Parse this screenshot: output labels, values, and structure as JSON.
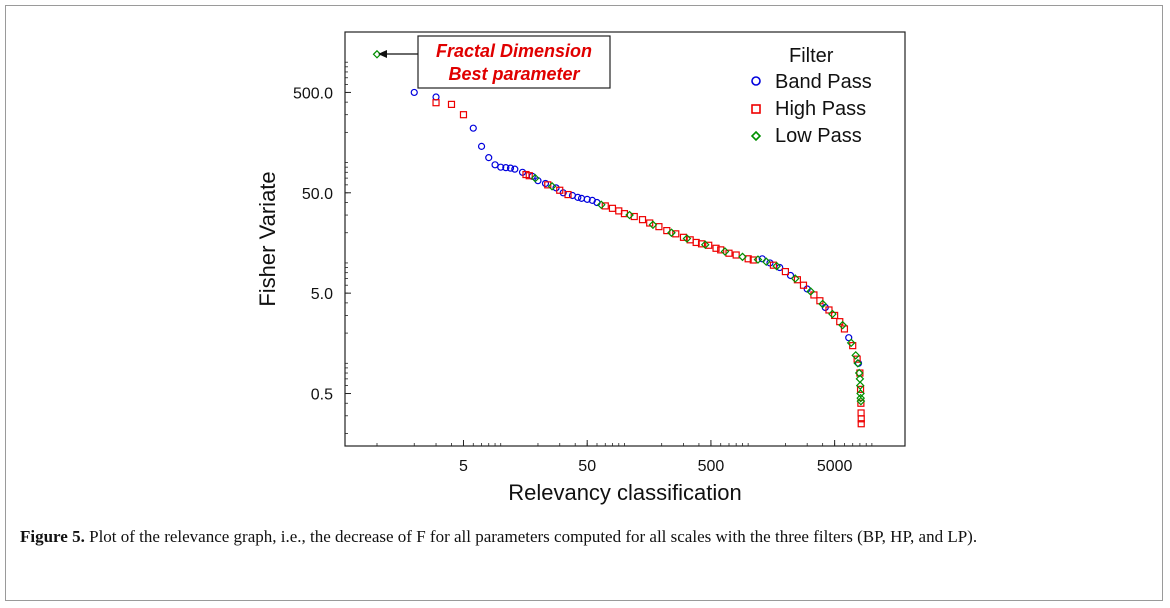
{
  "chart_data": {
    "type": "scatter",
    "xlabel": "Relevancy classification",
    "ylabel": "Fisher Variate",
    "x_scale": "log",
    "y_scale": "log",
    "xlim": [
      1,
      11000
    ],
    "ylim": [
      0.15,
      2000
    ],
    "x_ticks": [
      {
        "value": 5,
        "label": "5"
      },
      {
        "value": 50,
        "label": "50"
      },
      {
        "value": 500,
        "label": "500"
      },
      {
        "value": 5000,
        "label": "5000"
      }
    ],
    "y_ticks": [
      {
        "value": 0.5,
        "label": "0.5"
      },
      {
        "value": 5,
        "label": "5.0"
      },
      {
        "value": 50,
        "label": "50.0"
      },
      {
        "value": 500,
        "label": "500.0"
      }
    ],
    "legend": {
      "title": "Filter",
      "placement": "top-right"
    },
    "series": [
      {
        "name": "Band Pass",
        "marker": "circle",
        "color": "#0000dd",
        "points": [
          [
            2,
            500
          ],
          [
            3,
            450
          ],
          [
            6,
            220
          ],
          [
            7,
            145
          ],
          [
            8,
            112
          ],
          [
            9,
            95
          ],
          [
            10,
            90
          ],
          [
            11,
            89
          ],
          [
            12,
            88
          ],
          [
            13,
            86
          ],
          [
            15,
            80
          ],
          [
            18,
            73
          ],
          [
            20,
            66
          ],
          [
            23,
            62
          ],
          [
            28,
            56
          ],
          [
            32,
            50
          ],
          [
            38,
            47
          ],
          [
            42,
            45
          ],
          [
            45,
            44
          ],
          [
            50,
            43
          ],
          [
            55,
            42
          ],
          [
            60,
            40
          ],
          [
            1300,
            11
          ],
          [
            1500,
            10
          ],
          [
            1800,
            9
          ],
          [
            2200,
            7.5
          ],
          [
            3000,
            5.5
          ],
          [
            4200,
            3.6
          ],
          [
            6500,
            1.8
          ],
          [
            7800,
            1.0
          ]
        ]
      },
      {
        "name": "High Pass",
        "marker": "square",
        "color": "#ee0000",
        "points": [
          [
            3,
            395
          ],
          [
            4,
            380
          ],
          [
            5,
            300
          ],
          [
            16,
            76
          ],
          [
            17,
            74
          ],
          [
            24,
            60
          ],
          [
            30,
            53
          ],
          [
            35,
            48
          ],
          [
            70,
            37
          ],
          [
            80,
            35
          ],
          [
            90,
            33
          ],
          [
            100,
            31
          ],
          [
            120,
            29
          ],
          [
            140,
            27
          ],
          [
            160,
            25
          ],
          [
            190,
            23
          ],
          [
            220,
            21
          ],
          [
            260,
            19.5
          ],
          [
            300,
            18
          ],
          [
            340,
            17
          ],
          [
            380,
            16
          ],
          [
            420,
            15.5
          ],
          [
            480,
            15
          ],
          [
            550,
            14
          ],
          [
            600,
            13.5
          ],
          [
            700,
            12.5
          ],
          [
            800,
            12
          ],
          [
            1000,
            11
          ],
          [
            1100,
            10.7
          ],
          [
            1600,
            9.5
          ],
          [
            2000,
            8.2
          ],
          [
            2500,
            6.8
          ],
          [
            2800,
            6.0
          ],
          [
            3400,
            4.8
          ],
          [
            3800,
            4.2
          ],
          [
            4500,
            3.4
          ],
          [
            5000,
            3.0
          ],
          [
            5500,
            2.6
          ],
          [
            6000,
            2.2
          ],
          [
            7000,
            1.5
          ],
          [
            7600,
            1.1
          ],
          [
            8000,
            0.8
          ],
          [
            8100,
            0.55
          ],
          [
            8150,
            0.4
          ],
          [
            8180,
            0.32
          ],
          [
            8200,
            0.28
          ],
          [
            8200,
            0.25
          ]
        ]
      },
      {
        "name": "Low Pass",
        "marker": "diamond",
        "color": "#009000",
        "points": [
          [
            1,
            1200
          ],
          [
            19,
            70
          ],
          [
            26,
            58
          ],
          [
            65,
            38
          ],
          [
            110,
            30
          ],
          [
            170,
            24
          ],
          [
            240,
            20
          ],
          [
            320,
            17.5
          ],
          [
            450,
            15.2
          ],
          [
            650,
            13
          ],
          [
            900,
            11.5
          ],
          [
            1200,
            10.8
          ],
          [
            1400,
            10.3
          ],
          [
            1700,
            9.3
          ],
          [
            2400,
            7
          ],
          [
            3200,
            5.2
          ],
          [
            4000,
            3.9
          ],
          [
            4800,
            3.1
          ],
          [
            5800,
            2.4
          ],
          [
            6800,
            1.6
          ],
          [
            7400,
            1.2
          ],
          [
            7700,
            1.0
          ],
          [
            7900,
            0.8
          ],
          [
            8000,
            0.7
          ],
          [
            8050,
            0.6
          ],
          [
            8100,
            0.5
          ],
          [
            8120,
            0.45
          ],
          [
            8150,
            0.42
          ]
        ]
      }
    ],
    "annotation": {
      "lines": [
        "Fractal Dimension",
        "Best parameter"
      ],
      "target": [
        1,
        1200
      ]
    }
  },
  "caption": {
    "label": "Figure 5.",
    "text": " Plot of the relevance graph, i.e., the decrease of F for all parameters computed for all scales with the three filters (BP, HP, and LP)."
  }
}
